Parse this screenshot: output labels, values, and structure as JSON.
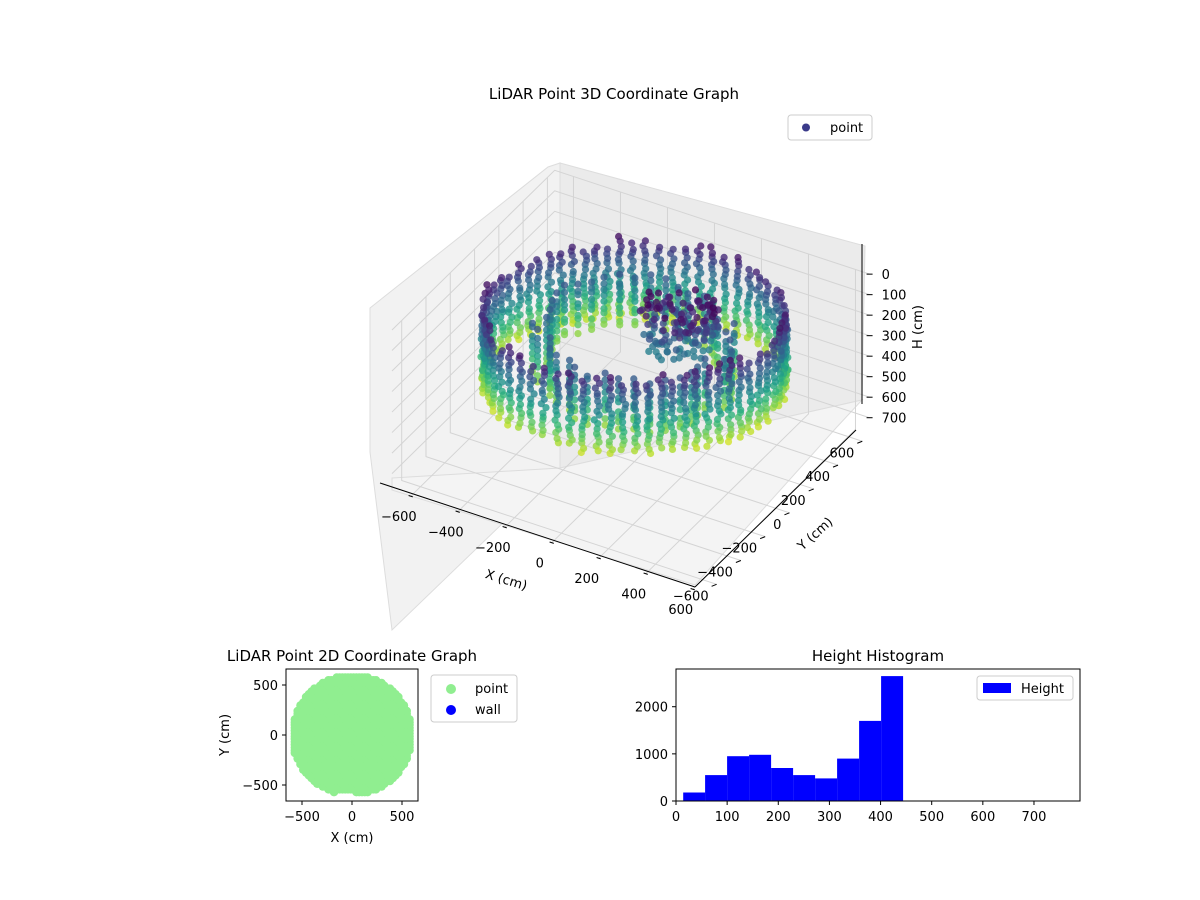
{
  "chart_data": [
    {
      "type": "scatter",
      "projection": "3d",
      "title": "LiDAR Point 3D Coordinate Graph",
      "xlabel": "X (cm)",
      "ylabel": "Y (cm)",
      "zlabel": "H (cm)",
      "xlim": [
        -680,
        660
      ],
      "ylim": [
        -680,
        660
      ],
      "zlim": [
        780,
        0
      ],
      "xticks": [
        -600,
        -400,
        -200,
        0,
        200,
        400,
        600
      ],
      "yticks": [
        -600,
        -400,
        -200,
        0,
        200,
        400,
        600
      ],
      "zticks": [
        0,
        100,
        200,
        300,
        400,
        500,
        600,
        700
      ],
      "zaxis_inverted": true,
      "colormap": "viridis",
      "legend": {
        "entries": [
          "point"
        ],
        "placement": "upper-right"
      },
      "series": [
        {
          "name": "point",
          "color": "#3b3b8a",
          "ring_radius_cm": [
            480,
            580
          ],
          "height_range_cm": [
            0,
            430
          ],
          "center_blob": {
            "x": 150,
            "y": 80,
            "height_cm": [
              0,
              200
            ]
          }
        }
      ],
      "grid": true
    },
    {
      "type": "scatter",
      "title": "LiDAR Point 2D Coordinate Graph",
      "xlabel": "X (cm)",
      "ylabel": "Y (cm)",
      "xlim": [
        -660,
        660
      ],
      "ylim": [
        -660,
        660
      ],
      "xticks": [
        -500,
        0,
        500
      ],
      "yticks": [
        -500,
        0,
        500
      ],
      "fill_radius_cm": 600,
      "legend": {
        "entries": [
          "point",
          "wall"
        ],
        "placement": "outside-right"
      },
      "series": [
        {
          "name": "point",
          "color": "#90ee90"
        },
        {
          "name": "wall",
          "color": "#0000ff"
        }
      ],
      "grid": false
    },
    {
      "type": "bar",
      "subtype": "histogram",
      "title": "Height Histogram",
      "xlim": [
        0,
        790
      ],
      "ylim": [
        0,
        2800
      ],
      "xticks": [
        0,
        100,
        200,
        300,
        400,
        500,
        600,
        700
      ],
      "yticks": [
        0,
        1000,
        2000
      ],
      "bin_edges": [
        14,
        57,
        100,
        143,
        186,
        229,
        272,
        315,
        358,
        401,
        444
      ],
      "values": [
        180,
        550,
        950,
        980,
        700,
        550,
        480,
        900,
        1700,
        2650
      ],
      "color": "#0000ff",
      "legend": {
        "entries": [
          "Height"
        ],
        "placement": "upper-right"
      },
      "series": [
        {
          "name": "Height"
        }
      ],
      "grid": false
    }
  ]
}
